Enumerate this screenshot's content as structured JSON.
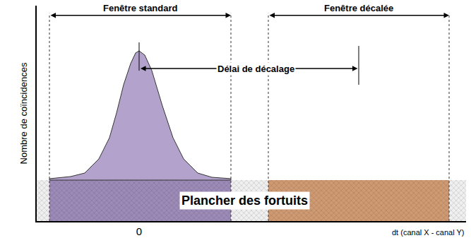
{
  "chart_data": {
    "type": "area",
    "x_label": "dt (canal X - canal Y)",
    "y_label": "Nombre de coïncidences",
    "xlim": [
      -1.45,
      4.63
    ],
    "ylim": [
      0,
      3.05
    ],
    "xticks": [
      0
    ],
    "yticks": [],
    "tick_labels": "x",
    "grid": false,
    "peak": {
      "color": "#b3a3cc",
      "x": [
        -1.27,
        -0.97,
        -0.77,
        -0.57,
        -0.42,
        -0.32,
        -0.22,
        -0.12,
        -0.05,
        0,
        0.08,
        0.18,
        0.33,
        0.48,
        0.63,
        0.83,
        1.03,
        1.3
      ],
      "values": [
        0.6,
        0.63,
        0.68,
        0.88,
        1.18,
        1.53,
        1.93,
        2.23,
        2.38,
        2.41,
        2.35,
        2.13,
        1.63,
        1.18,
        0.88,
        0.68,
        0.62,
        0.6
      ]
    },
    "floor": {
      "value": 0.58,
      "label": "Plancher des fortuits",
      "color": "#dcdcdc"
    },
    "windows": [
      {
        "label": "Fenêtre standard",
        "start": -1.27,
        "end": 1.3,
        "color": "#9c8ab8"
      },
      {
        "label": "Fenêtre décalée",
        "start": 1.83,
        "end": 4.39,
        "color": "#cf9a72"
      }
    ],
    "delay": {
      "label": "Délai de décalage",
      "from": 0,
      "to": 3.11
    }
  }
}
